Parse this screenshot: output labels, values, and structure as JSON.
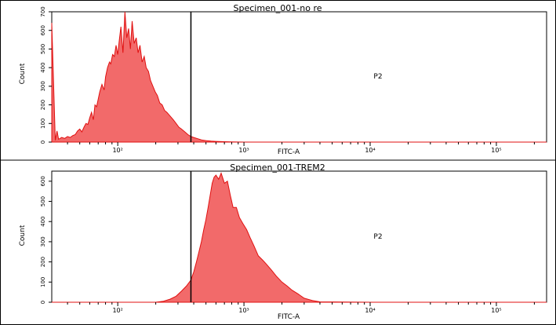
{
  "chart_data": [
    {
      "type": "area",
      "title": "Specimen_001-no re",
      "xlabel": "FITC-A",
      "ylabel": "Count",
      "xscale": "log",
      "xlim": [
        30,
        250000
      ],
      "ylim": [
        0,
        700
      ],
      "xticks": [
        100,
        1000,
        10000,
        100000
      ],
      "xtick_labels": [
        "10²",
        "10³",
        "10⁴",
        "10⁵"
      ],
      "yticks": [
        0,
        100,
        200,
        300,
        400,
        500,
        600,
        700
      ],
      "ytick_labels": [
        "0",
        "100",
        "200",
        "300",
        "400",
        "500",
        "600",
        "700"
      ],
      "gate": {
        "name": "P2",
        "x_start": 380
      },
      "fill_color": "#f26a6a",
      "line_color": "#e01010",
      "series": [
        {
          "x": [
            30,
            32,
            33,
            34,
            36,
            38,
            40,
            42,
            44,
            46,
            48,
            50,
            52,
            54,
            56,
            58,
            60,
            62,
            64,
            66,
            68,
            70,
            72,
            75,
            78,
            80,
            83,
            86,
            88,
            91,
            94,
            97,
            100,
            103,
            106,
            110,
            114,
            118,
            122,
            126,
            130,
            135,
            140,
            145,
            150,
            156,
            162,
            168,
            175,
            182,
            190,
            198,
            206,
            215,
            225,
            235,
            245,
            260,
            275,
            290,
            305,
            320,
            340,
            360,
            380,
            400,
            430,
            460,
            500,
            550,
            600,
            700,
            800,
            1000,
            2000,
            10000,
            100000,
            250000
          ],
          "y": [
            640,
            10,
            60,
            15,
            25,
            20,
            30,
            25,
            35,
            40,
            60,
            70,
            55,
            80,
            100,
            95,
            130,
            160,
            120,
            200,
            190,
            230,
            270,
            310,
            280,
            350,
            400,
            430,
            420,
            470,
            460,
            520,
            470,
            550,
            620,
            480,
            700,
            560,
            610,
            500,
            650,
            530,
            560,
            480,
            520,
            430,
            460,
            400,
            380,
            330,
            300,
            270,
            250,
            210,
            200,
            170,
            160,
            140,
            120,
            100,
            80,
            70,
            55,
            40,
            30,
            25,
            18,
            12,
            8,
            5,
            4,
            2,
            1,
            0,
            0,
            0,
            0,
            0
          ]
        }
      ]
    },
    {
      "type": "area",
      "title": "Specimen_001-TREM2",
      "xlabel": "FITC-A",
      "ylabel": "Count",
      "xscale": "log",
      "xlim": [
        30,
        250000
      ],
      "ylim": [
        0,
        650
      ],
      "xticks": [
        100,
        1000,
        10000,
        100000
      ],
      "xtick_labels": [
        "10²",
        "10³",
        "10⁴",
        "10⁵"
      ],
      "yticks": [
        0,
        100,
        200,
        300,
        400,
        500,
        600
      ],
      "ytick_labels": [
        "0",
        "100",
        "200",
        "300",
        "400",
        "500",
        "600"
      ],
      "gate": {
        "name": "P2",
        "x_start": 380
      },
      "fill_color": "#f26a6a",
      "line_color": "#e01010",
      "series": [
        {
          "x": [
            30,
            200,
            230,
            260,
            290,
            320,
            350,
            380,
            400,
            420,
            440,
            460,
            480,
            500,
            520,
            540,
            560,
            580,
            600,
            630,
            660,
            700,
            740,
            780,
            820,
            870,
            920,
            980,
            1050,
            1120,
            1200,
            1300,
            1400,
            1500,
            1650,
            1800,
            2000,
            2200,
            2400,
            2700,
            3000,
            3500,
            4000,
            10000,
            100000,
            250000
          ],
          "y": [
            0,
            0,
            5,
            15,
            30,
            55,
            80,
            110,
            150,
            200,
            250,
            300,
            360,
            410,
            470,
            530,
            590,
            620,
            630,
            610,
            640,
            590,
            600,
            530,
            470,
            470,
            420,
            390,
            360,
            320,
            280,
            230,
            210,
            190,
            160,
            130,
            100,
            80,
            60,
            40,
            20,
            8,
            2,
            0,
            0,
            0
          ]
        }
      ]
    }
  ]
}
